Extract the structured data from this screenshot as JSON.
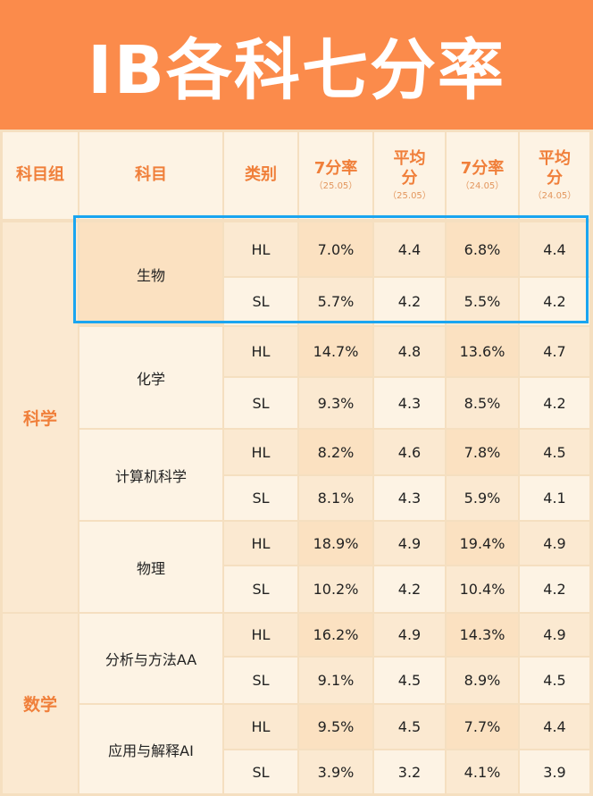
{
  "title": "IB各科七分率",
  "headers": {
    "group": "科目组",
    "subject": "科目",
    "level": "类别",
    "rate_2505": {
      "main": "7分率",
      "sub": "（25.05）"
    },
    "avg_2505": {
      "main": "平均分",
      "sub": "（25.05）"
    },
    "rate_2405": {
      "main": "7分率",
      "sub": "（24.05）"
    },
    "avg_2405": {
      "main": "平均分",
      "sub": "（24.05）"
    }
  },
  "groups": [
    {
      "name": "科学"
    },
    {
      "name": "数学"
    }
  ],
  "subjects": [
    {
      "name": "生物"
    },
    {
      "name": "化学"
    },
    {
      "name": "计算机科学"
    },
    {
      "name": "物理"
    },
    {
      "name": "分析与方法AA"
    },
    {
      "name": "应用与解释AI"
    }
  ],
  "rows": [
    {
      "level": "HL",
      "rate_2505": "7.0%",
      "avg_2505": "4.4",
      "rate_2405": "6.8%",
      "avg_2405": "4.4"
    },
    {
      "level": "SL",
      "rate_2505": "5.7%",
      "avg_2505": "4.2",
      "rate_2405": "5.5%",
      "avg_2405": "4.2"
    },
    {
      "level": "HL",
      "rate_2505": "14.7%",
      "avg_2505": "4.8",
      "rate_2405": "13.6%",
      "avg_2405": "4.7"
    },
    {
      "level": "SL",
      "rate_2505": "9.3%",
      "avg_2505": "4.3",
      "rate_2405": "8.5%",
      "avg_2405": "4.2"
    },
    {
      "level": "HL",
      "rate_2505": "8.2%",
      "avg_2505": "4.6",
      "rate_2405": "7.8%",
      "avg_2405": "4.5"
    },
    {
      "level": "SL",
      "rate_2505": "8.1%",
      "avg_2505": "4.3",
      "rate_2405": "5.9%",
      "avg_2405": "4.1"
    },
    {
      "level": "HL",
      "rate_2505": "18.9%",
      "avg_2505": "4.9",
      "rate_2405": "19.4%",
      "avg_2405": "4.9"
    },
    {
      "level": "SL",
      "rate_2505": "10.2%",
      "avg_2505": "4.2",
      "rate_2405": "10.4%",
      "avg_2405": "4.2"
    },
    {
      "level": "HL",
      "rate_2505": "16.2%",
      "avg_2505": "4.9",
      "rate_2405": "14.3%",
      "avg_2405": "4.9"
    },
    {
      "level": "SL",
      "rate_2505": "9.1%",
      "avg_2505": "4.5",
      "rate_2405": "8.9%",
      "avg_2405": "4.5"
    },
    {
      "level": "HL",
      "rate_2505": "9.5%",
      "avg_2505": "4.5",
      "rate_2405": "7.7%",
      "avg_2405": "4.4"
    },
    {
      "level": "SL",
      "rate_2505": "3.9%",
      "avg_2505": "3.2",
      "rate_2405": "4.1%",
      "avg_2405": "3.9"
    }
  ],
  "colors": {
    "banner": "#fb8b4b",
    "accent_text": "#f07f3a",
    "highlight_border": "#1aa5f0",
    "cell_light": "#fdf3e4",
    "cell_mid": "#fbe9d1",
    "cell_dark": "#fbe1c1"
  }
}
